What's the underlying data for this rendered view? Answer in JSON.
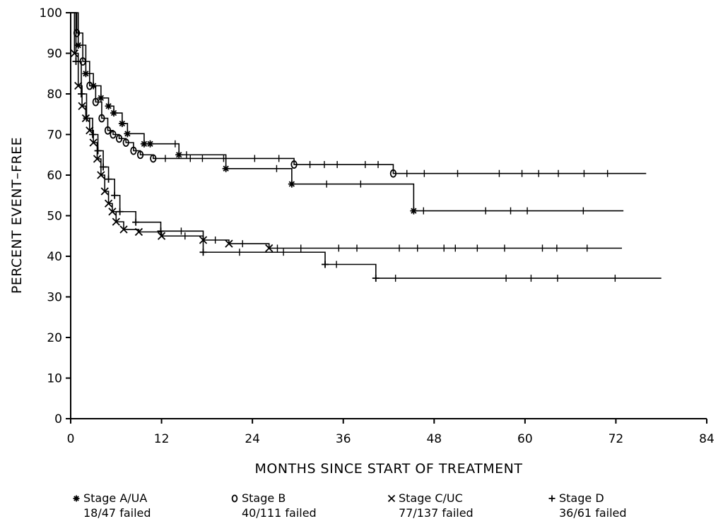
{
  "chart_data": {
    "type": "line",
    "subtype": "kaplan-meier step curve",
    "title": "",
    "xlabel": "MONTHS SINCE START OF TREATMENT",
    "ylabel": "PERCENT EVENT–FREE",
    "xlim": [
      0,
      84
    ],
    "ylim": [
      0,
      100
    ],
    "xticks": [
      "0",
      "12",
      "24",
      "36",
      "48",
      "60",
      "72",
      "84"
    ],
    "yticks": [
      "0",
      "10",
      "20",
      "30",
      "40",
      "50",
      "60",
      "70",
      "80",
      "90",
      "100"
    ],
    "grid": false,
    "legend_position": "bottom",
    "series": [
      {
        "name": "Stage A/UA",
        "marker": "*",
        "detail": "18/47 failed",
        "x": [
          0,
          1,
          2,
          3,
          4,
          5,
          5.7,
          6.8,
          7.5,
          9.7,
          10.5,
          14.3,
          20.5,
          29.2,
          45.3,
          73
        ],
        "y": [
          100,
          92,
          85,
          82,
          79,
          77,
          75.3,
          72.7,
          70.2,
          67.7,
          67.7,
          65,
          61.6,
          57.8,
          51.2,
          51.2
        ],
        "censor_x": [
          13.8,
          15.3,
          27.2,
          33.8,
          38.3,
          46.6,
          54.8,
          58.1,
          60.3,
          67.7
        ]
      },
      {
        "name": "Stage B",
        "marker": "o",
        "detail": "40/111 failed",
        "x": [
          0,
          0.8,
          1.6,
          2.5,
          3.3,
          4.1,
          4.9,
          5.6,
          6.4,
          7.3,
          8.3,
          9.2,
          10.9,
          29.5,
          42.6,
          76
        ],
        "y": [
          100,
          95,
          88,
          82,
          78,
          74,
          71,
          70,
          69,
          68,
          66,
          65,
          64.1,
          62.6,
          60.4,
          60.4
        ],
        "censor_x": [
          12.5,
          15.8,
          17.4,
          20.2,
          24.3,
          27.5,
          31.6,
          33.5,
          35.2,
          38.9,
          40.6,
          44.4,
          46.7,
          51.1,
          56.6,
          59.6,
          61.8,
          64.4,
          67.8,
          70.9
        ]
      },
      {
        "name": "Stage C/UC",
        "marker": "x",
        "detail": "77/137 failed",
        "x": [
          0,
          0.5,
          1,
          1.5,
          2,
          2.5,
          3,
          3.5,
          4,
          4.5,
          5,
          5.5,
          6,
          7,
          9,
          12,
          17.5,
          20.9,
          26.2,
          72.8
        ],
        "y": [
          100,
          90,
          82,
          77,
          74,
          71,
          68,
          64,
          60,
          56,
          53,
          51,
          48.5,
          46.6,
          46,
          45,
          44,
          43.1,
          42,
          42
        ],
        "censor_x": [
          15.1,
          19.1,
          22.7,
          27.3,
          30.4,
          35.4,
          37.8,
          43.4,
          45.8,
          49.3,
          50.8,
          53.7,
          57.3,
          62.3,
          64.2,
          68.2
        ]
      },
      {
        "name": "Stage D",
        "marker": "+",
        "detail": "36/61 failed",
        "x": [
          0,
          0.7,
          1.4,
          2.1,
          2.9,
          3.6,
          4.3,
          5,
          5.8,
          6.5,
          8.6,
          11.9,
          17.5,
          33.6,
          40.3,
          78
        ],
        "y": [
          100,
          88,
          80,
          74,
          70,
          66,
          62,
          59,
          55,
          51,
          48.4,
          46.2,
          41,
          38,
          34.6,
          34.6
        ],
        "censor_x": [
          14.6,
          22.3,
          28.1,
          35.1,
          42.9,
          57.5,
          60.8,
          64.3,
          71.9
        ]
      }
    ]
  }
}
